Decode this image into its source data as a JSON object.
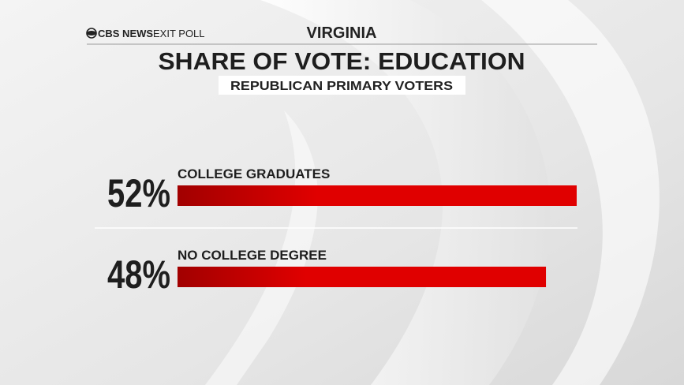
{
  "brand": {
    "network": "CBS NEWS",
    "product": "EXIT POLL"
  },
  "chart_data": {
    "type": "bar",
    "orientation": "horizontal",
    "state": "VIRGINIA",
    "title": "SHARE OF VOTE: EDUCATION",
    "subtitle": "REPUBLICAN PRIMARY VOTERS",
    "categories": [
      "COLLEGE GRADUATES",
      "NO COLLEGE DEGREE"
    ],
    "values": [
      52,
      48
    ],
    "value_labels": [
      "52%",
      "48%"
    ],
    "color": "#e00000"
  }
}
